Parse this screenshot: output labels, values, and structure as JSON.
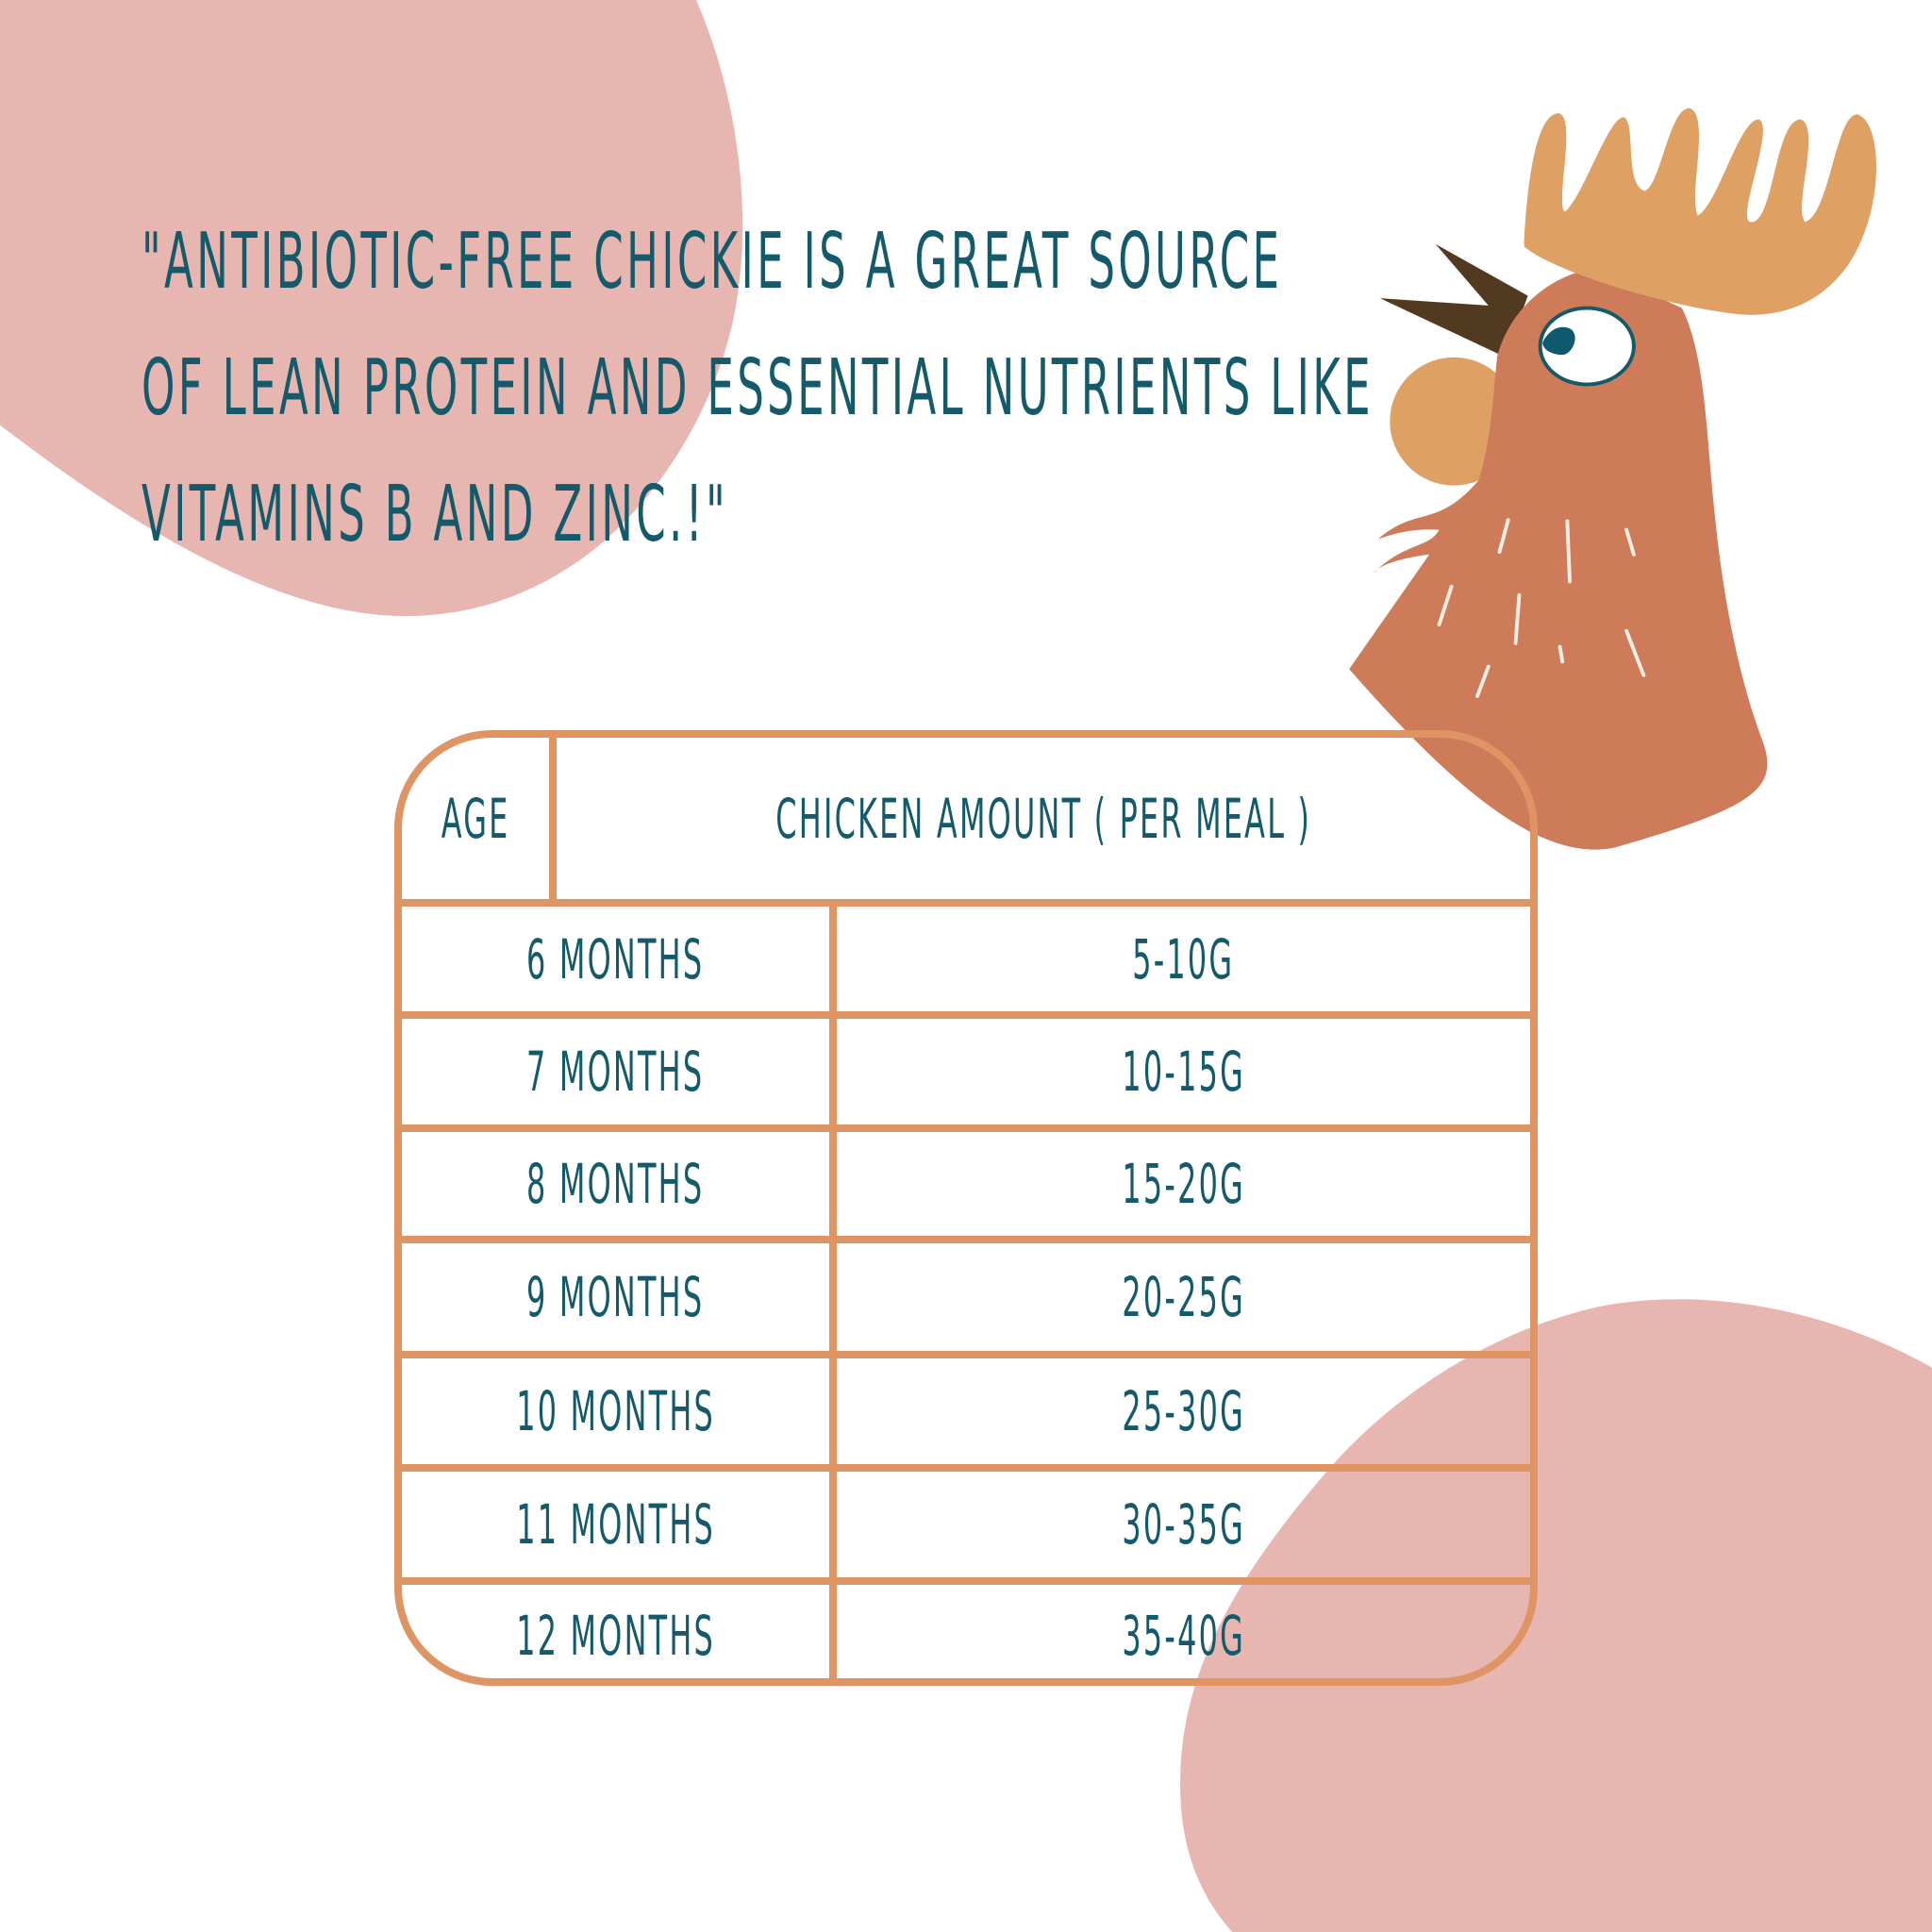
{
  "quote": {
    "lines": [
      "\"ANTIBIOTIC-FREE CHICKIE IS A GREAT SOURCE",
      "OF LEAN PROTEIN AND ESSENTIAL NUTRIENTS LIKE",
      "VITAMINS B AND ZINC.!\""
    ]
  },
  "table": {
    "headers": [
      "AGE",
      "CHICKEN AMOUNT ( PER MEAL )"
    ],
    "rows": [
      [
        "6 MONTHS",
        "5-10G"
      ],
      [
        "7 MONTHS",
        "10-15G"
      ],
      [
        "8 MONTHS",
        "15-20G"
      ],
      [
        "9 MONTHS",
        "20-25G"
      ],
      [
        "10 MONTHS",
        "25-30G"
      ],
      [
        "11 MONTHS",
        "30-35G"
      ],
      [
        "12 MONTHS",
        "35-40G"
      ]
    ]
  },
  "colors": {
    "text": "#145a6a",
    "table_border": "#de9563",
    "blob": "#e8b6b0",
    "rooster_head": "#ce7b59",
    "rooster_comb": "#dfa064",
    "beak": "#523a21"
  },
  "illustration": {
    "icon": "rooster-head-icon"
  }
}
